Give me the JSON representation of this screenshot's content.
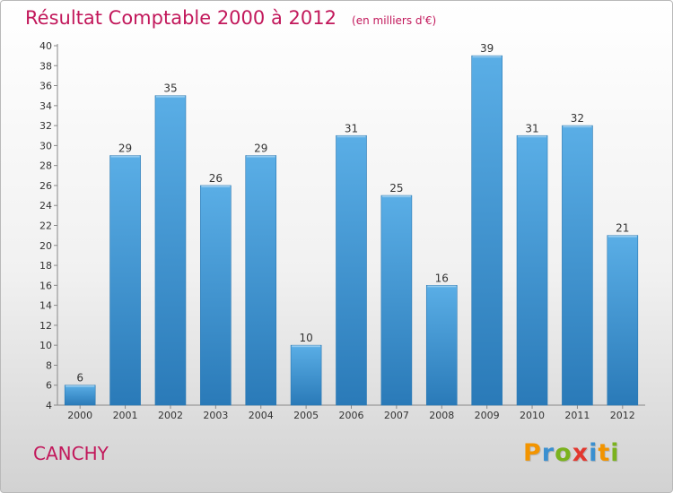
{
  "header": {
    "title": "Résultat Comptable 2000 à 2012",
    "subtitle": "(en milliers d'€)"
  },
  "footer": {
    "city": "CANCHY",
    "logo_text": "Proxiti"
  },
  "colors": {
    "accent": "#c2185b",
    "bar_top": "#5aaee6",
    "bar_bottom": "#2a7ab8"
  },
  "chart_data": {
    "type": "bar",
    "categories": [
      "2000",
      "2001",
      "2002",
      "2003",
      "2004",
      "2005",
      "2006",
      "2007",
      "2008",
      "2009",
      "2010",
      "2011",
      "2012"
    ],
    "values": [
      6,
      29,
      35,
      26,
      29,
      10,
      31,
      25,
      16,
      39,
      31,
      32,
      21
    ],
    "title": "Résultat Comptable 2000 à 2012",
    "subtitle": "(en milliers d'€)",
    "ylim": [
      4,
      40
    ],
    "yticks": [
      4,
      6,
      8,
      10,
      12,
      14,
      16,
      18,
      20,
      22,
      24,
      26,
      28,
      30,
      32,
      34,
      36,
      38,
      40
    ],
    "grid": false,
    "data_labels": true
  }
}
